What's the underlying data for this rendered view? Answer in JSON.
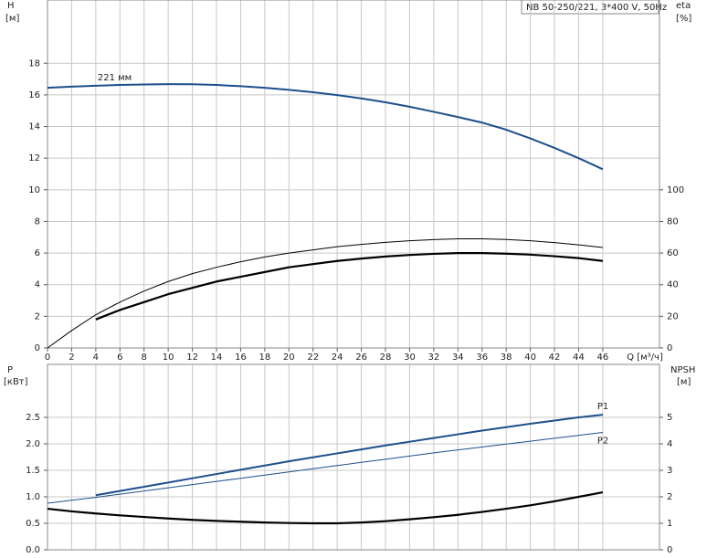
{
  "chart_data": [
    {
      "type": "line",
      "title": "NB 50-250/221, 3*400 V, 50Hz",
      "xlabel": "Q [м³/ч]",
      "ylabel": "H",
      "ylabel_unit": "[м]",
      "y2label": "eta",
      "y2label_unit": "[%]",
      "xlim": [
        0,
        50.7
      ],
      "xticks": [
        0,
        2,
        4,
        6,
        8,
        10,
        12,
        14,
        16,
        18,
        20,
        22,
        24,
        26,
        28,
        30,
        32,
        34,
        36,
        38,
        40,
        42,
        44,
        46
      ],
      "ylim": [
        0,
        22
      ],
      "yticks": [
        0,
        2,
        4,
        6,
        8,
        10,
        12,
        14,
        16,
        18
      ],
      "y2lim": [
        0,
        220
      ],
      "y2ticks": [
        0,
        20,
        40,
        60,
        80,
        100
      ],
      "grid": true,
      "series": [
        {
          "name": "221 мм",
          "color": "#1d4f8c",
          "line_width": 2,
          "axis": "y",
          "x": [
            0,
            2,
            4,
            6,
            8,
            10,
            12,
            14,
            16,
            18,
            20,
            22,
            24,
            26,
            28,
            30,
            32,
            34,
            36,
            38,
            40,
            42,
            44,
            46
          ],
          "values": [
            16.45,
            16.52,
            16.58,
            16.63,
            16.66,
            16.68,
            16.67,
            16.63,
            16.55,
            16.45,
            16.32,
            16.17,
            15.99,
            15.78,
            15.53,
            15.25,
            14.93,
            14.6,
            14.25,
            13.8,
            13.25,
            12.65,
            12.0,
            11.3
          ]
        },
        {
          "color": "#000000",
          "line_width": 1,
          "axis": "y2",
          "x": [
            0,
            2,
            4,
            6,
            8,
            10,
            12,
            14,
            16,
            18,
            20,
            22,
            24,
            26,
            28,
            30,
            32,
            34,
            36,
            38,
            40,
            42,
            44,
            46
          ],
          "values": [
            0,
            11,
            21,
            29,
            36,
            42,
            47,
            51,
            54.5,
            57.5,
            60,
            62,
            64,
            65.5,
            66.8,
            67.8,
            68.5,
            69,
            69,
            68.6,
            67.8,
            66.6,
            65.2,
            63.5
          ]
        },
        {
          "color": "#000000",
          "line_width": 2.2,
          "axis": "y2",
          "x": [
            4,
            6,
            8,
            10,
            12,
            14,
            16,
            18,
            20,
            22,
            24,
            26,
            28,
            30,
            32,
            34,
            36,
            38,
            40,
            42,
            44,
            46
          ],
          "values": [
            18,
            24,
            29,
            34,
            38,
            42,
            45,
            48,
            51,
            53,
            55,
            56.5,
            57.8,
            58.8,
            59.5,
            60,
            60,
            59.6,
            59,
            58,
            56.8,
            55
          ]
        }
      ]
    },
    {
      "type": "line",
      "ylabel": "P",
      "ylabel_unit": "[кВт]",
      "y2label": "NPSH",
      "y2label_unit": "[м]",
      "ylim": [
        0,
        3.5
      ],
      "yticks": [
        {
          "value": 0,
          "label": "0.0"
        },
        0.5,
        {
          "value": 1,
          "label": "1.0"
        },
        1.5,
        {
          "value": 2,
          "label": "2.0"
        },
        2.5
      ],
      "y2lim": [
        0,
        7
      ],
      "y2ticks": [
        0,
        1,
        2,
        3,
        4,
        5
      ],
      "grid": true,
      "series": [
        {
          "name": "P1",
          "color": "#1d4f8c",
          "line_width": 2,
          "axis": "y",
          "x": [
            4,
            6,
            8,
            10,
            12,
            14,
            16,
            18,
            20,
            22,
            24,
            26,
            28,
            30,
            32,
            34,
            36,
            38,
            40,
            42,
            44,
            46
          ],
          "values": [
            1.03,
            1.11,
            1.19,
            1.27,
            1.35,
            1.43,
            1.51,
            1.59,
            1.67,
            1.745,
            1.82,
            1.895,
            1.97,
            2.04,
            2.11,
            2.18,
            2.25,
            2.315,
            2.38,
            2.44,
            2.5,
            2.55
          ]
        },
        {
          "name": "P2",
          "color": "#1d4f8c",
          "line_width": 1,
          "axis": "y",
          "x": [
            0,
            2,
            4,
            6,
            8,
            10,
            12,
            14,
            16,
            18,
            20,
            22,
            24,
            26,
            28,
            30,
            32,
            34,
            36,
            38,
            40,
            42,
            44,
            46
          ],
          "values": [
            0.88,
            0.935,
            0.99,
            1.05,
            1.11,
            1.17,
            1.23,
            1.29,
            1.35,
            1.41,
            1.47,
            1.53,
            1.59,
            1.65,
            1.71,
            1.77,
            1.83,
            1.885,
            1.94,
            1.995,
            2.05,
            2.105,
            2.16,
            2.215
          ]
        },
        {
          "color": "#000000",
          "line_width": 2.2,
          "axis": "y2",
          "x": [
            0,
            2,
            4,
            6,
            8,
            10,
            12,
            14,
            16,
            18,
            20,
            22,
            24,
            26,
            28,
            30,
            32,
            34,
            36,
            38,
            40,
            42,
            44,
            46
          ],
          "values": [
            1.55,
            1.45,
            1.37,
            1.3,
            1.24,
            1.18,
            1.13,
            1.09,
            1.06,
            1.03,
            1.01,
            1.0,
            1.0,
            1.03,
            1.08,
            1.15,
            1.23,
            1.32,
            1.43,
            1.55,
            1.68,
            1.83,
            2.0,
            2.17
          ]
        }
      ]
    }
  ]
}
